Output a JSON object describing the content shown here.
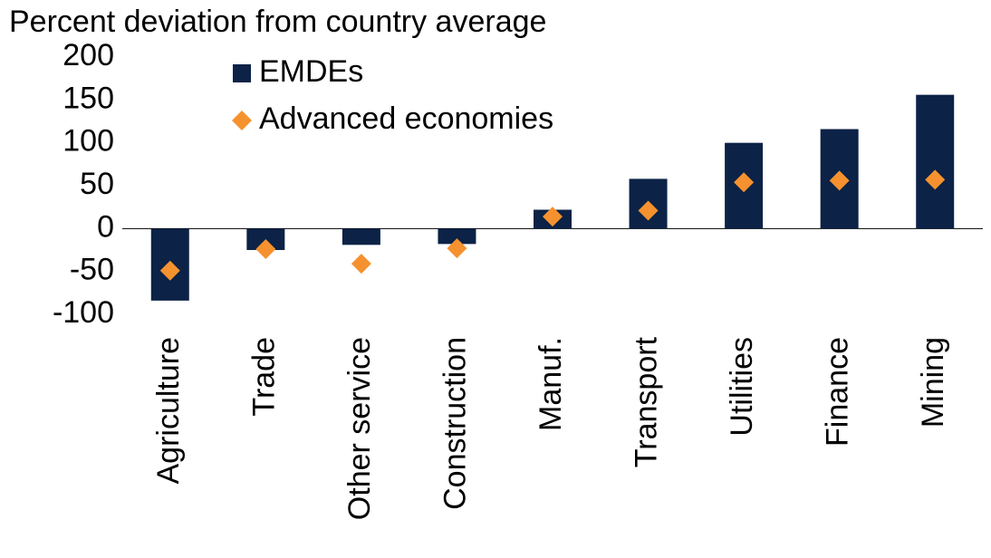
{
  "chart_data": {
    "type": "bar",
    "y_label": "Percent deviation from country average",
    "categories": [
      "Agriculture",
      "Trade",
      "Other service",
      "Construction",
      "Manuf.",
      "Transport",
      "Utilities",
      "Finance",
      "Mining"
    ],
    "series": [
      {
        "name": "EMDEs",
        "color": "#0c2246",
        "marker": "bar",
        "values": [
          -84,
          -25,
          -19,
          -18,
          22,
          58,
          100,
          116,
          156
        ]
      },
      {
        "name": "Advanced economies",
        "color": "#f5922f",
        "marker": "diamond",
        "values": [
          -49,
          -24,
          -41,
          -23,
          14,
          21,
          54,
          56,
          57
        ]
      }
    ],
    "ylim": [
      -100,
      200
    ],
    "yticks": [
      -100,
      -50,
      0,
      50,
      100,
      150,
      200
    ],
    "grid": false,
    "legend": "top-left"
  }
}
